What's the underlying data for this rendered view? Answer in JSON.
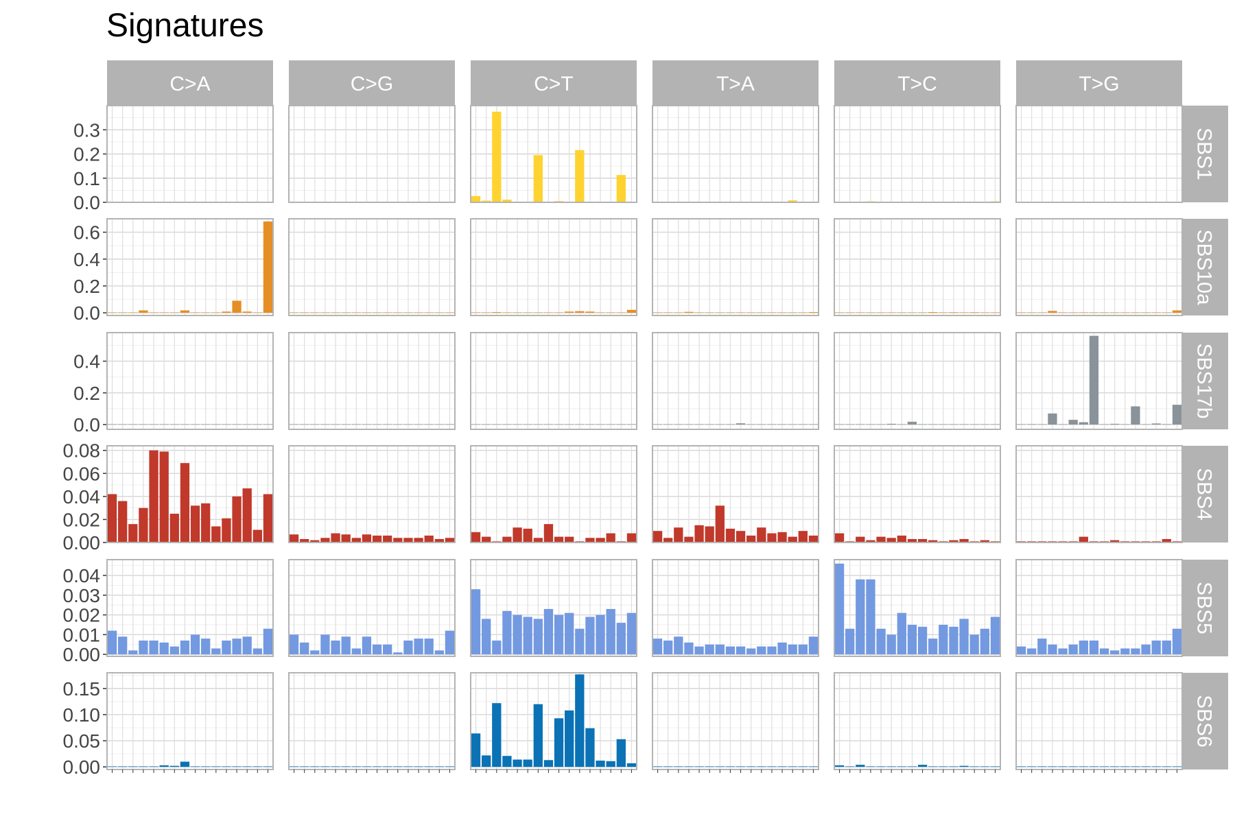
{
  "chart_data": {
    "type": "bar",
    "title": "Signatures",
    "columns": [
      "C>A",
      "C>G",
      "C>T",
      "T>A",
      "T>C",
      "T>G"
    ],
    "rows": [
      {
        "name": "SBS1",
        "color": "#FED330",
        "ylim": [
          0,
          0.4
        ],
        "yticks": [
          0,
          0.1,
          0.2,
          0.3
        ],
        "tick_labels": [
          "0.0",
          "0.1",
          "0.2",
          "0.3"
        ],
        "values": [
          [
            0.002,
            0.001,
            0.002,
            0.001,
            0.002,
            0.001,
            0.001,
            0.002,
            0.001,
            0.001,
            0.001,
            0.002,
            0.001,
            0.001,
            0.003,
            0.001
          ],
          [
            0.001,
            0.001,
            0.001,
            0.001,
            0.001,
            0.001,
            0.001,
            0.001,
            0.001,
            0.001,
            0.001,
            0.001,
            0.001,
            0.001,
            0.001,
            0.002
          ],
          [
            0.026,
            0.007,
            0.375,
            0.011,
            0.001,
            0.001,
            0.195,
            0.001,
            0.005,
            0.001,
            0.216,
            0.001,
            0.001,
            0.001,
            0.113,
            0.001
          ],
          [
            0.001,
            0.001,
            0.001,
            0.001,
            0.001,
            0.001,
            0.001,
            0.001,
            0.001,
            0.001,
            0.001,
            0.001,
            0.001,
            0.008,
            0.001,
            0.002
          ],
          [
            0.001,
            0.002,
            0.001,
            0.004,
            0.001,
            0.002,
            0.001,
            0.001,
            0.001,
            0.001,
            0.001,
            0.002,
            0.001,
            0.001,
            0.003,
            0.004
          ],
          [
            0.001,
            0.001,
            0.001,
            0.001,
            0.001,
            0.001,
            0.001,
            0.001,
            0.001,
            0.001,
            0.001,
            0.001,
            0.001,
            0.001,
            0.001,
            0.001
          ]
        ]
      },
      {
        "name": "SBS10a",
        "color": "#E58E26",
        "ylim": [
          -0.02,
          0.7
        ],
        "yticks": [
          0,
          0.2,
          0.4,
          0.6
        ],
        "tick_labels": [
          "0.0",
          "0.2",
          "0.4",
          "0.6"
        ],
        "values": [
          [
            0.001,
            0.001,
            0.001,
            0.018,
            0.001,
            0.001,
            0.001,
            0.018,
            0.001,
            0.001,
            0.001,
            0.009,
            0.09,
            0.009,
            0.001,
            0.68
          ],
          [
            0.001,
            0.001,
            0.001,
            0.001,
            0.001,
            0.001,
            0.001,
            0.001,
            0.001,
            0.001,
            0.001,
            0.001,
            0.001,
            0.001,
            0.001,
            0.001
          ],
          [
            0.001,
            0.001,
            0.005,
            0.001,
            0.001,
            0.001,
            0.001,
            0.001,
            0.001,
            0.009,
            0.012,
            0.009,
            0.001,
            0.001,
            0.001,
            0.022
          ],
          [
            0.001,
            0.001,
            0.001,
            0.007,
            0.001,
            0.001,
            0.001,
            0.001,
            0.001,
            0.001,
            0.001,
            0.001,
            0.001,
            0.001,
            0.001,
            0.005
          ],
          [
            0.001,
            0.002,
            0.002,
            0.001,
            0.001,
            0.001,
            0.001,
            0.001,
            0.001,
            0.005,
            0.001,
            0.004,
            0.001,
            0.004,
            0.001,
            0.001
          ],
          [
            0.001,
            0.001,
            0.001,
            0.014,
            0.001,
            0.001,
            0.001,
            0.001,
            0.001,
            0.001,
            0.001,
            0.001,
            0.001,
            0.003,
            0.001,
            0.018
          ]
        ]
      },
      {
        "name": "SBS17b",
        "color": "#8A9399",
        "ylim": [
          -0.03,
          0.58
        ],
        "yticks": [
          0,
          0.2,
          0.4
        ],
        "tick_labels": [
          "0.0",
          "0.2",
          "0.4"
        ],
        "values": [
          [
            0.001,
            0.001,
            0.001,
            0.001,
            0.001,
            0.001,
            0.001,
            0.001,
            0.001,
            0.001,
            0.001,
            0.001,
            0.001,
            0.001,
            0.001,
            0.002
          ],
          [
            0.001,
            0.001,
            0.001,
            0.001,
            0.001,
            0.001,
            0.001,
            0.001,
            0.001,
            0.001,
            0.001,
            0.001,
            0.001,
            0.001,
            0.001,
            0.001
          ],
          [
            0.001,
            0.001,
            0.001,
            0.001,
            0.001,
            0.001,
            0.001,
            0.001,
            0.001,
            0.001,
            0.001,
            0.001,
            0.001,
            0.001,
            0.001,
            0.001
          ],
          [
            0.001,
            0.001,
            0.001,
            0.001,
            0.001,
            0.001,
            0.002,
            0.001,
            0.008,
            0.001,
            0.001,
            0.001,
            0.001,
            0.001,
            0.001,
            0.001
          ],
          [
            0.001,
            0.001,
            0.001,
            0.001,
            0.001,
            0.005,
            0.001,
            0.018,
            0.001,
            0.001,
            0.001,
            0.001,
            0.001,
            0.001,
            0.001,
            0.001
          ],
          [
            0.001,
            0.003,
            0.001,
            0.07,
            0.001,
            0.03,
            0.015,
            0.56,
            0.001,
            0.005,
            0.001,
            0.115,
            0.001,
            0.007,
            0.003,
            0.125
          ]
        ]
      },
      {
        "name": "SBS4",
        "color": "#C0392B",
        "ylim": [
          0,
          0.084
        ],
        "yticks": [
          0,
          0.02,
          0.04,
          0.06,
          0.08
        ],
        "tick_labels": [
          "0.00",
          "0.02",
          "0.04",
          "0.06",
          "0.08"
        ],
        "values": [
          [
            0.042,
            0.036,
            0.016,
            0.03,
            0.08,
            0.079,
            0.025,
            0.069,
            0.032,
            0.034,
            0.014,
            0.021,
            0.04,
            0.047,
            0.011,
            0.042
          ],
          [
            0.007,
            0.003,
            0.002,
            0.004,
            0.008,
            0.007,
            0.004,
            0.007,
            0.006,
            0.006,
            0.004,
            0.004,
            0.004,
            0.006,
            0.003,
            0.004
          ],
          [
            0.009,
            0.005,
            0.001,
            0.005,
            0.013,
            0.012,
            0.004,
            0.016,
            0.005,
            0.005,
            0.001,
            0.004,
            0.004,
            0.008,
            0.001,
            0.008
          ],
          [
            0.01,
            0.004,
            0.013,
            0.005,
            0.015,
            0.014,
            0.032,
            0.012,
            0.01,
            0.006,
            0.013,
            0.008,
            0.009,
            0.005,
            0.01,
            0.006
          ],
          [
            0.008,
            0.001,
            0.005,
            0.002,
            0.005,
            0.004,
            0.006,
            0.003,
            0.003,
            0.002,
            0.001,
            0.002,
            0.003,
            0.001,
            0.002,
            0.001
          ],
          [
            0.001,
            0.001,
            0.001,
            0.001,
            0.001,
            0.001,
            0.005,
            0.001,
            0.001,
            0.002,
            0.001,
            0.001,
            0.001,
            0.001,
            0.003,
            0.001
          ]
        ]
      },
      {
        "name": "SBS5",
        "color": "#7399E0",
        "ylim": [
          -0.001,
          0.048
        ],
        "yticks": [
          0,
          0.01,
          0.02,
          0.03,
          0.04
        ],
        "tick_labels": [
          "0.00",
          "0.01",
          "0.02",
          "0.03",
          "0.04"
        ],
        "values": [
          [
            0.012,
            0.009,
            0.002,
            0.007,
            0.007,
            0.006,
            0.004,
            0.007,
            0.01,
            0.008,
            0.003,
            0.007,
            0.008,
            0.009,
            0.003,
            0.013
          ],
          [
            0.01,
            0.006,
            0.002,
            0.01,
            0.007,
            0.009,
            0.003,
            0.009,
            0.005,
            0.005,
            0.001,
            0.007,
            0.008,
            0.008,
            0.002,
            0.012
          ],
          [
            0.033,
            0.018,
            0.007,
            0.022,
            0.02,
            0.019,
            0.018,
            0.023,
            0.02,
            0.021,
            0.013,
            0.019,
            0.02,
            0.023,
            0.016,
            0.021
          ],
          [
            0.008,
            0.007,
            0.009,
            0.006,
            0.004,
            0.005,
            0.005,
            0.004,
            0.004,
            0.003,
            0.004,
            0.004,
            0.006,
            0.005,
            0.005,
            0.009
          ],
          [
            0.046,
            0.013,
            0.038,
            0.038,
            0.013,
            0.01,
            0.021,
            0.015,
            0.014,
            0.008,
            0.015,
            0.014,
            0.018,
            0.01,
            0.013,
            0.019
          ],
          [
            0.004,
            0.003,
            0.008,
            0.005,
            0.003,
            0.005,
            0.007,
            0.007,
            0.003,
            0.002,
            0.003,
            0.003,
            0.005,
            0.007,
            0.007,
            0.013
          ]
        ]
      },
      {
        "name": "SBS6",
        "color": "#0A72B5",
        "ylim": [
          -0.005,
          0.18
        ],
        "yticks": [
          0,
          0.05,
          0.1,
          0.15
        ],
        "tick_labels": [
          "0.00",
          "0.05",
          "0.10",
          "0.15"
        ],
        "values": [
          [
            0.001,
            0.001,
            0.001,
            0.001,
            0.001,
            0.003,
            0.002,
            0.01,
            0.001,
            0.001,
            0.001,
            0.001,
            0.001,
            0.001,
            0.001,
            0.001
          ],
          [
            0.001,
            0.001,
            0.001,
            0.001,
            0.001,
            0.001,
            0.001,
            0.001,
            0.001,
            0.001,
            0.001,
            0.001,
            0.001,
            0.001,
            0.001,
            0.001
          ],
          [
            0.064,
            0.022,
            0.122,
            0.021,
            0.014,
            0.014,
            0.12,
            0.013,
            0.093,
            0.108,
            0.177,
            0.074,
            0.012,
            0.011,
            0.053,
            0.007
          ],
          [
            0.001,
            0.001,
            0.001,
            0.001,
            0.001,
            0.001,
            0.001,
            0.001,
            0.001,
            0.001,
            0.001,
            0.001,
            0.001,
            0.001,
            0.001,
            0.001
          ],
          [
            0.003,
            0.001,
            0.004,
            0.001,
            0.001,
            0.001,
            0.001,
            0.001,
            0.004,
            0.001,
            0.001,
            0.001,
            0.002,
            0.001,
            0.001,
            0.001
          ],
          [
            0.001,
            0.001,
            0.001,
            0.001,
            0.001,
            0.001,
            0.001,
            0.001,
            0.001,
            0.001,
            0.001,
            0.001,
            0.001,
            0.001,
            0.001,
            0.001
          ]
        ]
      }
    ]
  }
}
